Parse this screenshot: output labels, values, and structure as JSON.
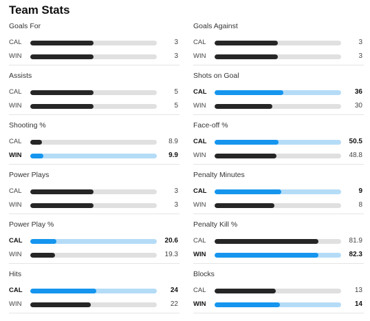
{
  "header": {
    "title": "Team Stats"
  },
  "stats": [
    {
      "label": "Goals For",
      "rows": [
        {
          "team": "CAL",
          "value": "3",
          "fraction": 0.5,
          "leader": false
        },
        {
          "team": "WIN",
          "value": "3",
          "fraction": 0.5,
          "leader": false
        }
      ]
    },
    {
      "label": "Goals Against",
      "rows": [
        {
          "team": "CAL",
          "value": "3",
          "fraction": 0.5,
          "leader": false
        },
        {
          "team": "WIN",
          "value": "3",
          "fraction": 0.5,
          "leader": false
        }
      ]
    },
    {
      "label": "Assists",
      "rows": [
        {
          "team": "CAL",
          "value": "5",
          "fraction": 0.5,
          "leader": false
        },
        {
          "team": "WIN",
          "value": "5",
          "fraction": 0.5,
          "leader": false
        }
      ]
    },
    {
      "label": "Shots on Goal",
      "rows": [
        {
          "team": "CAL",
          "value": "36",
          "fraction": 0.545,
          "leader": true
        },
        {
          "team": "WIN",
          "value": "30",
          "fraction": 0.455,
          "leader": false
        }
      ]
    },
    {
      "label": "Shooting %",
      "rows": [
        {
          "team": "CAL",
          "value": "8.9",
          "fraction": 0.095,
          "leader": false
        },
        {
          "team": "WIN",
          "value": "9.9",
          "fraction": 0.105,
          "leader": true
        }
      ]
    },
    {
      "label": "Face-off %",
      "rows": [
        {
          "team": "CAL",
          "value": "50.5",
          "fraction": 0.505,
          "leader": true
        },
        {
          "team": "WIN",
          "value": "48.8",
          "fraction": 0.488,
          "leader": false
        }
      ]
    },
    {
      "label": "Power Plays",
      "rows": [
        {
          "team": "CAL",
          "value": "3",
          "fraction": 0.5,
          "leader": false
        },
        {
          "team": "WIN",
          "value": "3",
          "fraction": 0.5,
          "leader": false
        }
      ]
    },
    {
      "label": "Penalty Minutes",
      "rows": [
        {
          "team": "CAL",
          "value": "9",
          "fraction": 0.529,
          "leader": true
        },
        {
          "team": "WIN",
          "value": "8",
          "fraction": 0.471,
          "leader": false
        }
      ]
    },
    {
      "label": "Power Play %",
      "rows": [
        {
          "team": "CAL",
          "value": "20.6",
          "fraction": 0.206,
          "leader": true
        },
        {
          "team": "WIN",
          "value": "19.3",
          "fraction": 0.193,
          "leader": false
        }
      ]
    },
    {
      "label": "Penalty Kill %",
      "rows": [
        {
          "team": "CAL",
          "value": "81.9",
          "fraction": 0.819,
          "leader": false
        },
        {
          "team": "WIN",
          "value": "82.3",
          "fraction": 0.823,
          "leader": true
        }
      ]
    },
    {
      "label": "Hits",
      "rows": [
        {
          "team": "CAL",
          "value": "24",
          "fraction": 0.522,
          "leader": true
        },
        {
          "team": "WIN",
          "value": "22",
          "fraction": 0.478,
          "leader": false
        }
      ]
    },
    {
      "label": "Blocks",
      "rows": [
        {
          "team": "CAL",
          "value": "13",
          "fraction": 0.481,
          "leader": false
        },
        {
          "team": "WIN",
          "value": "14",
          "fraction": 0.519,
          "leader": true
        }
      ]
    }
  ],
  "colors": {
    "leader_fill": "#1595ee",
    "leader_track": "#b5dcf7",
    "default_fill": "#262626",
    "default_track": "#e0e0e0"
  }
}
